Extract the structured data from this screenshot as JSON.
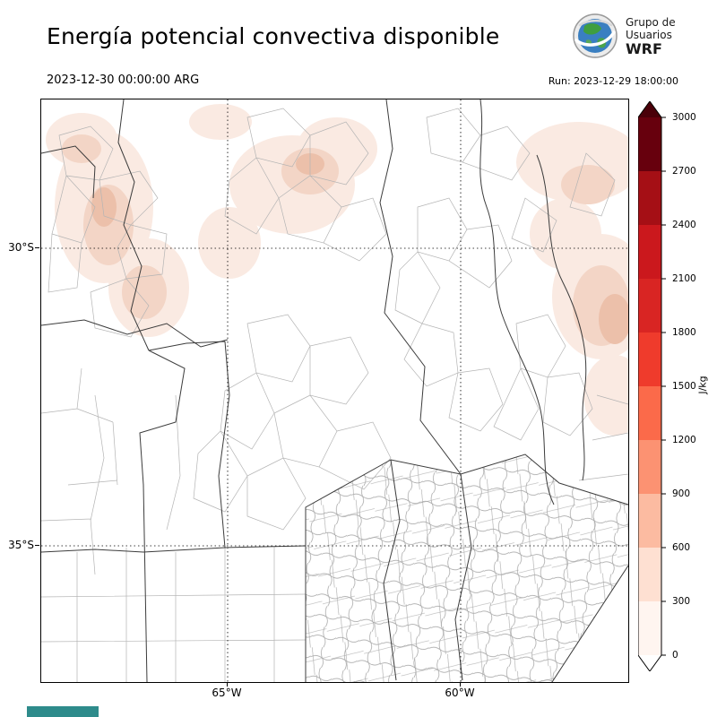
{
  "header": {
    "title": "Energía potencial convectiva disponible",
    "logo": {
      "line1": "Grupo de",
      "line2": "Usuarios",
      "line3": "WRF"
    },
    "valid_time": "2023-12-30 00:00:00 ARG",
    "run_time": "Run: 2023-12-29 18:00:00"
  },
  "map_axes": {
    "lat_ticks": [
      {
        "label": "30°S"
      },
      {
        "label": "35°S"
      }
    ],
    "lon_ticks": [
      {
        "label": "65°W"
      },
      {
        "label": "60°W"
      }
    ]
  },
  "map_colors": {
    "shade_light": "#faeae2",
    "shade_medium": "#f3d5c6",
    "shade_strong": "#ecc0aa",
    "province_stroke": "#3c3c3c",
    "department_stroke": "#b4b4b4",
    "gridline_stroke": "#000000"
  },
  "colorbar": {
    "units": "J/kg",
    "ticks": [
      "3000",
      "2700",
      "2400",
      "2100",
      "1800",
      "1500",
      "1200",
      "900",
      "600",
      "300",
      "0"
    ],
    "segment_colors_top_to_bottom": [
      "#67000d",
      "#a50f15",
      "#cb181d",
      "#d92523",
      "#ef3b2c",
      "#fb6a4a",
      "#fc9272",
      "#fcbba1",
      "#fee0d2",
      "#fff5f0"
    ],
    "over_color": "#4a0009",
    "under_color": "#ffffff"
  },
  "footer": {
    "bar_color": "#2e8b8b"
  }
}
